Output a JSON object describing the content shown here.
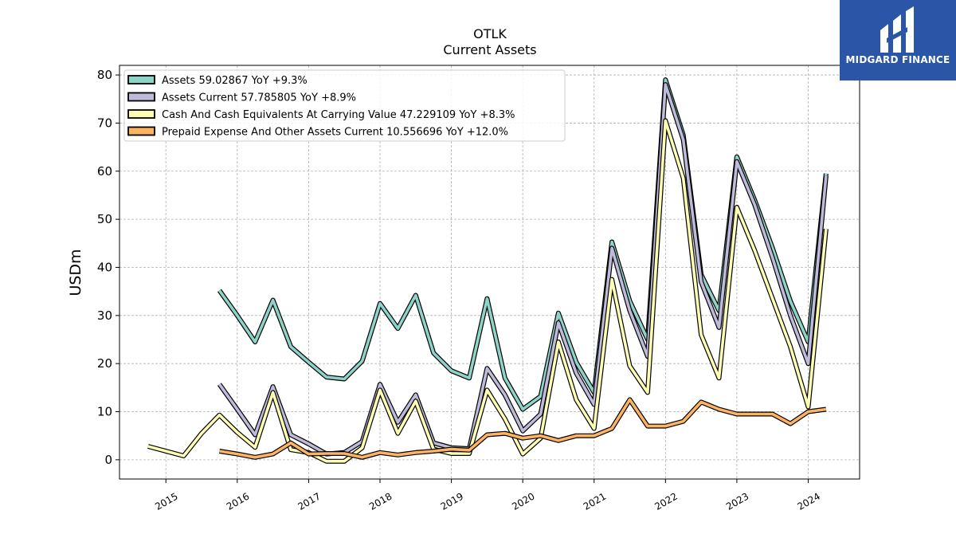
{
  "brand": {
    "name": "MIDGARD FINANCE"
  },
  "chart_data": {
    "type": "line",
    "title": "OTLK",
    "subtitle": "Current  Assets",
    "ylabel": "USDm",
    "xlabel": "",
    "ylim": [
      -4,
      82
    ],
    "xlim": [
      2014.35,
      2024.72
    ],
    "yticks": [
      0,
      10,
      20,
      30,
      40,
      50,
      60,
      70,
      80
    ],
    "xticks": [
      2015,
      2016,
      2017,
      2018,
      2019,
      2020,
      2021,
      2022,
      2023,
      2024
    ],
    "grid": true,
    "legend_position": "top-left",
    "series": [
      {
        "name": "Assets",
        "legend": "Assets  59.02867 YoY +9.3%",
        "color": "#8dd3c7",
        "points": [
          [
            2015.75,
            35.2
          ],
          [
            2016.0,
            30
          ],
          [
            2016.25,
            24.5
          ],
          [
            2016.5,
            33.2
          ],
          [
            2016.75,
            23.5
          ],
          [
            2017.0,
            20.3
          ],
          [
            2017.25,
            17.2
          ],
          [
            2017.5,
            16.8
          ],
          [
            2017.75,
            20.5
          ],
          [
            2018.0,
            32.5
          ],
          [
            2018.25,
            27.3
          ],
          [
            2018.5,
            34.2
          ],
          [
            2018.75,
            22.2
          ],
          [
            2019.0,
            18.5
          ],
          [
            2019.25,
            17
          ],
          [
            2019.5,
            33.5
          ],
          [
            2019.75,
            17
          ],
          [
            2020.0,
            10.5
          ],
          [
            2020.25,
            13.2
          ],
          [
            2020.5,
            30.5
          ],
          [
            2020.75,
            20.3
          ],
          [
            2021.0,
            14
          ],
          [
            2021.25,
            45.3
          ],
          [
            2021.5,
            33
          ],
          [
            2021.75,
            25
          ],
          [
            2022.0,
            79
          ],
          [
            2022.25,
            67.5
          ],
          [
            2022.5,
            38.5
          ],
          [
            2022.75,
            31
          ],
          [
            2023.0,
            63
          ],
          [
            2023.25,
            54
          ],
          [
            2023.5,
            44
          ],
          [
            2023.75,
            33
          ],
          [
            2024.0,
            24.5
          ],
          [
            2024.25,
            59.5
          ]
        ]
      },
      {
        "name": "Assets Current",
        "legend": "Assets Current  57.785805 YoY +8.9%",
        "color": "#bebada",
        "points": [
          [
            2015.75,
            15.7
          ],
          [
            2016.0,
            10.5
          ],
          [
            2016.25,
            5.2
          ],
          [
            2016.5,
            15.2
          ],
          [
            2016.75,
            5.2
          ],
          [
            2017.0,
            3.3
          ],
          [
            2017.25,
            1.2
          ],
          [
            2017.5,
            1.5
          ],
          [
            2017.75,
            3.8
          ],
          [
            2018.0,
            15.7
          ],
          [
            2018.25,
            7.8
          ],
          [
            2018.5,
            13.5
          ],
          [
            2018.75,
            3.5
          ],
          [
            2019.0,
            2.5
          ],
          [
            2019.25,
            2.3
          ],
          [
            2019.5,
            19
          ],
          [
            2019.75,
            13.5
          ],
          [
            2020.0,
            6
          ],
          [
            2020.25,
            9.5
          ],
          [
            2020.5,
            28.5
          ],
          [
            2020.75,
            18
          ],
          [
            2021.0,
            11.5
          ],
          [
            2021.25,
            44
          ],
          [
            2021.5,
            31
          ],
          [
            2021.75,
            21.5
          ],
          [
            2022.0,
            78
          ],
          [
            2022.25,
            66.5
          ],
          [
            2022.5,
            37
          ],
          [
            2022.75,
            27.5
          ],
          [
            2023.0,
            62
          ],
          [
            2023.25,
            53
          ],
          [
            2023.5,
            42
          ],
          [
            2023.75,
            30
          ],
          [
            2024.0,
            20
          ],
          [
            2024.25,
            59
          ]
        ]
      },
      {
        "name": "Cash And Cash Equivalents At Carrying Value",
        "legend": "Cash And Cash Equivalents At Carrying Value  47.229109 YoY +8.3%",
        "color": "#ffffb3",
        "points": [
          [
            2014.75,
            2.8
          ],
          [
            2015.0,
            1.8
          ],
          [
            2015.25,
            0.8
          ],
          [
            2015.5,
            5.5
          ],
          [
            2015.75,
            9.3
          ],
          [
            2016.0,
            5.7
          ],
          [
            2016.25,
            2.6
          ],
          [
            2016.5,
            14
          ],
          [
            2016.75,
            2.1
          ],
          [
            2017.0,
            1.5
          ],
          [
            2017.25,
            -0.3
          ],
          [
            2017.5,
            -0.3
          ],
          [
            2017.75,
            2.5
          ],
          [
            2018.0,
            14.5
          ],
          [
            2018.25,
            5.5
          ],
          [
            2018.5,
            12.2
          ],
          [
            2018.75,
            2.2
          ],
          [
            2019.0,
            1.3
          ],
          [
            2019.25,
            1.3
          ],
          [
            2019.5,
            14.5
          ],
          [
            2019.75,
            8.5
          ],
          [
            2020.0,
            1.2
          ],
          [
            2020.25,
            4.5
          ],
          [
            2020.5,
            24.5
          ],
          [
            2020.75,
            12.5
          ],
          [
            2021.0,
            6.5
          ],
          [
            2021.25,
            37.5
          ],
          [
            2021.5,
            19.5
          ],
          [
            2021.75,
            14
          ],
          [
            2022.0,
            70.5
          ],
          [
            2022.25,
            58.5
          ],
          [
            2022.5,
            26
          ],
          [
            2022.75,
            17
          ],
          [
            2023.0,
            52.5
          ],
          [
            2023.25,
            43.5
          ],
          [
            2023.5,
            33.5
          ],
          [
            2023.75,
            23.5
          ],
          [
            2024.0,
            11
          ],
          [
            2024.25,
            48
          ]
        ]
      },
      {
        "name": "Prepaid Expense And Other Assets Current",
        "legend": "Prepaid Expense And Other Assets Current  10.556696 YoY +12.0%",
        "color": "#fdb462",
        "points": [
          [
            2015.75,
            1.8
          ],
          [
            2016.0,
            1.2
          ],
          [
            2016.25,
            0.5
          ],
          [
            2016.5,
            1.2
          ],
          [
            2016.75,
            3.5
          ],
          [
            2017.0,
            1.2
          ],
          [
            2017.25,
            1.3
          ],
          [
            2017.5,
            1.3
          ],
          [
            2017.75,
            0.5
          ],
          [
            2018.0,
            1.5
          ],
          [
            2018.25,
            1
          ],
          [
            2018.5,
            1.5
          ],
          [
            2018.75,
            1.8
          ],
          [
            2019.0,
            2.2
          ],
          [
            2019.25,
            2
          ],
          [
            2019.5,
            5.2
          ],
          [
            2019.75,
            5.5
          ],
          [
            2020.0,
            4.5
          ],
          [
            2020.25,
            5
          ],
          [
            2020.5,
            4
          ],
          [
            2020.75,
            5
          ],
          [
            2021.0,
            5
          ],
          [
            2021.25,
            6.5
          ],
          [
            2021.5,
            12.5
          ],
          [
            2021.75,
            7
          ],
          [
            2022.0,
            7
          ],
          [
            2022.25,
            8
          ],
          [
            2022.5,
            12
          ],
          [
            2022.75,
            10.5
          ],
          [
            2023.0,
            9.5
          ],
          [
            2023.25,
            9.5
          ],
          [
            2023.5,
            9.5
          ],
          [
            2023.75,
            7.5
          ],
          [
            2024.0,
            10
          ],
          [
            2024.25,
            10.5
          ]
        ]
      }
    ]
  }
}
